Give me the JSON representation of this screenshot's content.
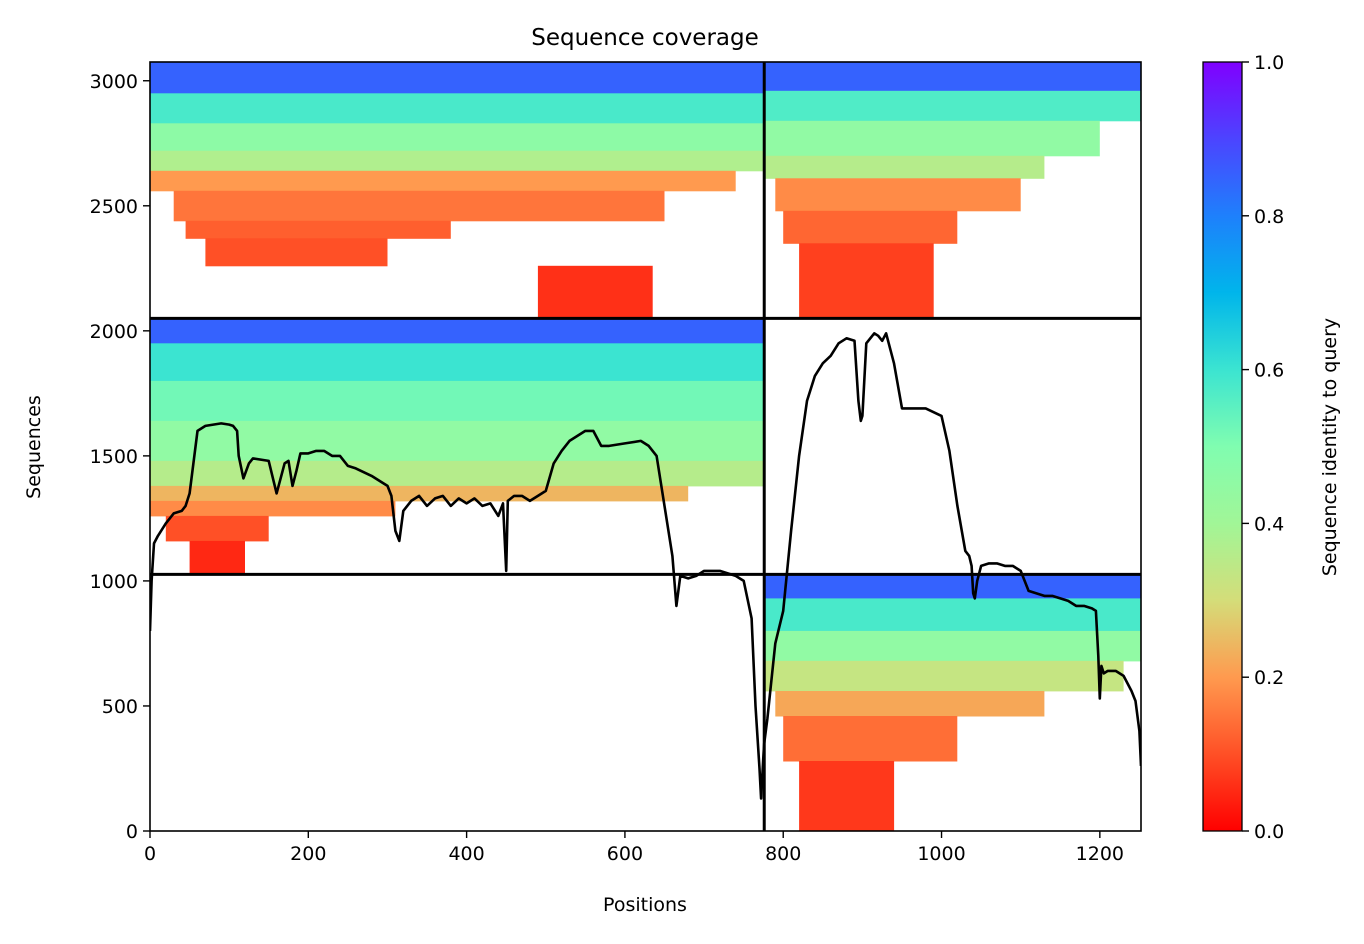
{
  "chart_data": {
    "type": "heatmap",
    "title": "Sequence coverage",
    "xlabel": "Positions",
    "ylabel": "Sequences",
    "xlim": [
      0,
      1252
    ],
    "ylim": [
      0,
      3075
    ],
    "xticks": [
      0,
      200,
      400,
      600,
      800,
      1000,
      1200
    ],
    "yticks": [
      0,
      500,
      1000,
      1500,
      2000,
      2500,
      3000
    ],
    "grid": false,
    "colorbar": {
      "label": "Sequence identity to query",
      "range": [
        0,
        1
      ],
      "ticks": [
        "0.0",
        "0.2",
        "0.4",
        "0.6",
        "0.8",
        "1.0"
      ],
      "colormap": "rainbow_r"
    },
    "chain_boundaries": {
      "x": [
        776
      ],
      "y": [
        1026,
        2050
      ]
    },
    "blocks": [
      {
        "name": "seg1-chainA",
        "x_range": [
          0,
          776
        ],
        "y_range": [
          2050,
          3075
        ],
        "layers": [
          {
            "x": [
              0,
              776
            ],
            "y": [
              2950,
              3075
            ],
            "identity": 0.85
          },
          {
            "x": [
              0,
              776
            ],
            "y": [
              2830,
              2950
            ],
            "identity": 0.58
          },
          {
            "x": [
              0,
              776
            ],
            "y": [
              2720,
              2830
            ],
            "identity": 0.46
          },
          {
            "x": [
              0,
              776
            ],
            "y": [
              2640,
              2720
            ],
            "identity": 0.37
          },
          {
            "x": [
              0,
              740
            ],
            "y": [
              2560,
              2640
            ],
            "identity": 0.2
          },
          {
            "x": [
              30,
              650
            ],
            "y": [
              2440,
              2560
            ],
            "identity": 0.15
          },
          {
            "x": [
              45,
              380
            ],
            "y": [
              2370,
              2440
            ],
            "identity": 0.12
          },
          {
            "x": [
              70,
              300
            ],
            "y": [
              2260,
              2370
            ],
            "identity": 0.1
          },
          {
            "x": [
              490,
              635
            ],
            "y": [
              2050,
              2260
            ],
            "identity": 0.06
          }
        ]
      },
      {
        "name": "seg2-chainB",
        "x_range": [
          776,
          1252
        ],
        "y_range": [
          2050,
          3075
        ],
        "layers": [
          {
            "x": [
              776,
              1252
            ],
            "y": [
              2960,
              3075
            ],
            "identity": 0.85
          },
          {
            "x": [
              776,
              1252
            ],
            "y": [
              2840,
              2960
            ],
            "identity": 0.57
          },
          {
            "x": [
              776,
              1200
            ],
            "y": [
              2700,
              2840
            ],
            "identity": 0.45
          },
          {
            "x": [
              776,
              1130
            ],
            "y": [
              2610,
              2700
            ],
            "identity": 0.36
          },
          {
            "x": [
              790,
              1100
            ],
            "y": [
              2480,
              2610
            ],
            "identity": 0.18
          },
          {
            "x": [
              800,
              1020
            ],
            "y": [
              2350,
              2480
            ],
            "identity": 0.13
          },
          {
            "x": [
              820,
              990
            ],
            "y": [
              2050,
              2350
            ],
            "identity": 0.08
          }
        ]
      },
      {
        "name": "seg3-chainA",
        "x_range": [
          0,
          776
        ],
        "y_range": [
          1026,
          2050
        ],
        "layers": [
          {
            "x": [
              0,
              776
            ],
            "y": [
              1950,
              2050
            ],
            "identity": 0.85
          },
          {
            "x": [
              0,
              776
            ],
            "y": [
              1800,
              1950
            ],
            "identity": 0.6
          },
          {
            "x": [
              0,
              776
            ],
            "y": [
              1640,
              1800
            ],
            "identity": 0.52
          },
          {
            "x": [
              0,
              776
            ],
            "y": [
              1480,
              1640
            ],
            "identity": 0.45
          },
          {
            "x": [
              0,
              776
            ],
            "y": [
              1380,
              1480
            ],
            "identity": 0.36
          },
          {
            "x": [
              0,
              680
            ],
            "y": [
              1320,
              1380
            ],
            "identity": 0.24
          },
          {
            "x": [
              0,
              310
            ],
            "y": [
              1260,
              1320
            ],
            "identity": 0.18
          },
          {
            "x": [
              20,
              150
            ],
            "y": [
              1160,
              1260
            ],
            "identity": 0.1
          },
          {
            "x": [
              50,
              120
            ],
            "y": [
              1026,
              1160
            ],
            "identity": 0.05
          }
        ]
      },
      {
        "name": "seg4-chainB",
        "x_range": [
          776,
          1252
        ],
        "y_range": [
          0,
          1026
        ],
        "layers": [
          {
            "x": [
              776,
              1252
            ],
            "y": [
              930,
              1026
            ],
            "identity": 0.85
          },
          {
            "x": [
              776,
              1252
            ],
            "y": [
              800,
              930
            ],
            "identity": 0.58
          },
          {
            "x": [
              776,
              1252
            ],
            "y": [
              680,
              800
            ],
            "identity": 0.45
          },
          {
            "x": [
              776,
              1230
            ],
            "y": [
              560,
              680
            ],
            "identity": 0.33
          },
          {
            "x": [
              790,
              1130
            ],
            "y": [
              460,
              560
            ],
            "identity": 0.22
          },
          {
            "x": [
              800,
              1020
            ],
            "y": [
              280,
              460
            ],
            "identity": 0.14
          },
          {
            "x": [
              820,
              940
            ],
            "y": [
              0,
              280
            ],
            "identity": 0.07
          }
        ]
      }
    ],
    "coverage_line": {
      "color": "#000000",
      "x": [
        0,
        2,
        5,
        10,
        20,
        30,
        40,
        45,
        50,
        60,
        70,
        80,
        90,
        100,
        105,
        110,
        112,
        118,
        125,
        130,
        150,
        160,
        170,
        175,
        180,
        185,
        190,
        200,
        210,
        220,
        230,
        240,
        250,
        260,
        280,
        300,
        305,
        310,
        315,
        320,
        330,
        340,
        350,
        360,
        370,
        380,
        390,
        400,
        410,
        420,
        430,
        440,
        446,
        450,
        452,
        460,
        470,
        480,
        490,
        500,
        510,
        520,
        530,
        540,
        550,
        560,
        570,
        580,
        600,
        620,
        630,
        640,
        650,
        660,
        665,
        670,
        680,
        690,
        700,
        710,
        720,
        730,
        740,
        750,
        760,
        765,
        770,
        772,
        775,
        776,
        780,
        790,
        800,
        810,
        820,
        830,
        840,
        850,
        860,
        870,
        880,
        890,
        895,
        898,
        900,
        905,
        910,
        915,
        920,
        925,
        930,
        940,
        950,
        960,
        970,
        980,
        1000,
        1010,
        1020,
        1030,
        1035,
        1038,
        1040,
        1042,
        1045,
        1050,
        1060,
        1070,
        1080,
        1090,
        1100,
        1110,
        1120,
        1130,
        1140,
        1150,
        1160,
        1170,
        1180,
        1190,
        1195,
        1198,
        1200,
        1202,
        1205,
        1210,
        1220,
        1230,
        1240,
        1245,
        1250,
        1252
      ],
      "y": [
        800,
        1000,
        1150,
        1180,
        1230,
        1270,
        1280,
        1300,
        1350,
        1600,
        1620,
        1625,
        1630,
        1625,
        1620,
        1600,
        1500,
        1410,
        1470,
        1490,
        1480,
        1350,
        1470,
        1480,
        1380,
        1440,
        1510,
        1510,
        1520,
        1520,
        1500,
        1500,
        1460,
        1450,
        1420,
        1380,
        1340,
        1200,
        1160,
        1280,
        1320,
        1340,
        1300,
        1330,
        1340,
        1300,
        1330,
        1310,
        1330,
        1300,
        1310,
        1260,
        1310,
        1040,
        1320,
        1340,
        1340,
        1320,
        1340,
        1360,
        1470,
        1520,
        1560,
        1580,
        1600,
        1600,
        1540,
        1540,
        1550,
        1560,
        1540,
        1500,
        1300,
        1100,
        900,
        1020,
        1010,
        1020,
        1040,
        1040,
        1040,
        1030,
        1020,
        1000,
        850,
        500,
        250,
        130,
        300,
        350,
        450,
        750,
        880,
        1200,
        1500,
        1720,
        1820,
        1870,
        1900,
        1950,
        1970,
        1960,
        1720,
        1640,
        1660,
        1950,
        1970,
        1990,
        1980,
        1960,
        1990,
        1870,
        1690,
        1690,
        1690,
        1690,
        1660,
        1520,
        1300,
        1120,
        1100,
        1060,
        950,
        930,
        1000,
        1060,
        1070,
        1070,
        1060,
        1060,
        1040,
        960,
        950,
        940,
        940,
        930,
        920,
        900,
        900,
        890,
        880,
        700,
        530,
        660,
        630,
        640,
        640,
        620,
        560,
        520,
        400,
        260
      ]
    }
  }
}
